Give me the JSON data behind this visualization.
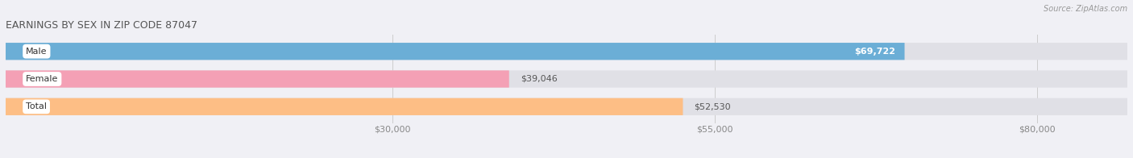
{
  "title": "EARNINGS BY SEX IN ZIP CODE 87047",
  "source": "Source: ZipAtlas.com",
  "categories": [
    "Male",
    "Female",
    "Total"
  ],
  "values": [
    69722,
    39046,
    52530
  ],
  "bar_colors": [
    "#6baed6",
    "#f4a0b5",
    "#fdbe85"
  ],
  "bar_bg_color": "#e0e0e6",
  "bar_labels": [
    "$69,722",
    "$39,046",
    "$52,530"
  ],
  "x_min": 0,
  "x_max": 87000,
  "x_ticks": [
    30000,
    55000,
    80000
  ],
  "x_tick_labels": [
    "$30,000",
    "$55,000",
    "$80,000"
  ],
  "fig_width": 14.06,
  "fig_height": 1.96,
  "bg_color": "#f0f0f5",
  "title_fontsize": 9,
  "label_fontsize": 8,
  "value_fontsize": 8,
  "bar_height": 0.62,
  "title_color": "#555555",
  "source_color": "#999999",
  "tick_color": "#888888",
  "cat_label_fontsize": 8
}
